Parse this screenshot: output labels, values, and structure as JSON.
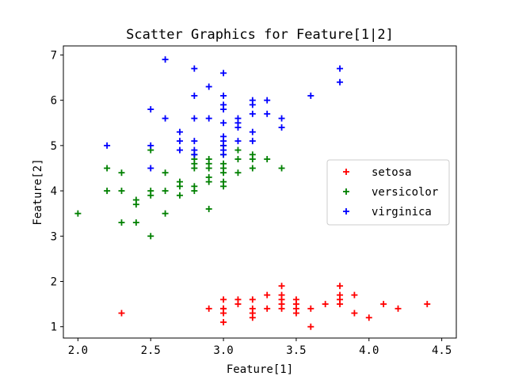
{
  "chart_data": {
    "type": "scatter",
    "title": "Scatter Graphics for Feature[1|2]",
    "xlabel": "Feature[1]",
    "ylabel": "Feature[2]",
    "xlim": [
      1.9,
      4.6
    ],
    "ylim": [
      0.75,
      7.2
    ],
    "xticks": [
      2.0,
      2.5,
      3.0,
      3.5,
      4.0,
      4.5
    ],
    "xtick_labels": [
      "2.0",
      "2.5",
      "3.0",
      "3.5",
      "4.0",
      "4.5"
    ],
    "yticks": [
      1,
      2,
      3,
      4,
      5,
      6,
      7
    ],
    "ytick_labels": [
      "1",
      "2",
      "3",
      "4",
      "5",
      "6",
      "7"
    ],
    "grid": false,
    "legend_position": "center-right",
    "marker": "plus",
    "series": [
      {
        "name": "setosa",
        "color": "#ff0000",
        "points": [
          [
            2.3,
            1.3
          ],
          [
            2.9,
            1.4
          ],
          [
            3.0,
            1.1
          ],
          [
            3.0,
            1.3
          ],
          [
            3.0,
            1.4
          ],
          [
            3.0,
            1.4
          ],
          [
            3.0,
            1.6
          ],
          [
            3.1,
            1.5
          ],
          [
            3.1,
            1.6
          ],
          [
            3.2,
            1.2
          ],
          [
            3.2,
            1.3
          ],
          [
            3.2,
            1.4
          ],
          [
            3.2,
            1.6
          ],
          [
            3.3,
            1.4
          ],
          [
            3.3,
            1.7
          ],
          [
            3.4,
            1.4
          ],
          [
            3.4,
            1.5
          ],
          [
            3.4,
            1.6
          ],
          [
            3.4,
            1.7
          ],
          [
            3.4,
            1.9
          ],
          [
            3.5,
            1.3
          ],
          [
            3.5,
            1.4
          ],
          [
            3.5,
            1.5
          ],
          [
            3.5,
            1.6
          ],
          [
            3.6,
            1.0
          ],
          [
            3.6,
            1.4
          ],
          [
            3.7,
            1.5
          ],
          [
            3.8,
            1.5
          ],
          [
            3.8,
            1.6
          ],
          [
            3.8,
            1.7
          ],
          [
            3.8,
            1.9
          ],
          [
            3.9,
            1.3
          ],
          [
            3.9,
            1.7
          ],
          [
            4.0,
            1.2
          ],
          [
            4.1,
            1.5
          ],
          [
            4.2,
            1.4
          ],
          [
            4.4,
            1.5
          ]
        ]
      },
      {
        "name": "versicolor",
        "color": "#008000",
        "points": [
          [
            2.0,
            3.5
          ],
          [
            2.2,
            4.0
          ],
          [
            2.2,
            4.5
          ],
          [
            2.3,
            3.3
          ],
          [
            2.3,
            4.0
          ],
          [
            2.3,
            4.4
          ],
          [
            2.4,
            3.3
          ],
          [
            2.4,
            3.7
          ],
          [
            2.4,
            3.8
          ],
          [
            2.5,
            3.0
          ],
          [
            2.5,
            3.9
          ],
          [
            2.5,
            4.0
          ],
          [
            2.5,
            4.9
          ],
          [
            2.6,
            3.5
          ],
          [
            2.6,
            4.0
          ],
          [
            2.6,
            4.4
          ],
          [
            2.7,
            3.9
          ],
          [
            2.7,
            4.1
          ],
          [
            2.7,
            4.2
          ],
          [
            2.8,
            4.0
          ],
          [
            2.8,
            4.1
          ],
          [
            2.8,
            4.5
          ],
          [
            2.8,
            4.6
          ],
          [
            2.8,
            4.7
          ],
          [
            2.8,
            4.8
          ],
          [
            2.9,
            3.6
          ],
          [
            2.9,
            4.2
          ],
          [
            2.9,
            4.3
          ],
          [
            2.9,
            4.5
          ],
          [
            2.9,
            4.6
          ],
          [
            2.9,
            4.7
          ],
          [
            3.0,
            4.1
          ],
          [
            3.0,
            4.2
          ],
          [
            3.0,
            4.4
          ],
          [
            3.0,
            4.5
          ],
          [
            3.0,
            4.6
          ],
          [
            3.0,
            4.8
          ],
          [
            3.0,
            5.0
          ],
          [
            3.1,
            4.4
          ],
          [
            3.1,
            4.7
          ],
          [
            3.1,
            4.9
          ],
          [
            3.2,
            4.5
          ],
          [
            3.2,
            4.7
          ],
          [
            3.2,
            4.8
          ],
          [
            3.3,
            4.7
          ],
          [
            3.4,
            4.5
          ]
        ]
      },
      {
        "name": "virginica",
        "color": "#0000ff",
        "points": [
          [
            2.2,
            5.0
          ],
          [
            2.5,
            4.5
          ],
          [
            2.5,
            5.0
          ],
          [
            2.5,
            5.8
          ],
          [
            2.6,
            5.6
          ],
          [
            2.6,
            6.9
          ],
          [
            2.7,
            4.9
          ],
          [
            2.7,
            5.1
          ],
          [
            2.7,
            5.3
          ],
          [
            2.8,
            4.8
          ],
          [
            2.8,
            4.9
          ],
          [
            2.8,
            5.1
          ],
          [
            2.8,
            5.6
          ],
          [
            2.8,
            6.1
          ],
          [
            2.8,
            6.7
          ],
          [
            2.9,
            5.6
          ],
          [
            2.9,
            6.3
          ],
          [
            3.0,
            4.8
          ],
          [
            3.0,
            4.9
          ],
          [
            3.0,
            5.0
          ],
          [
            3.0,
            5.1
          ],
          [
            3.0,
            5.2
          ],
          [
            3.0,
            5.5
          ],
          [
            3.0,
            5.8
          ],
          [
            3.0,
            5.9
          ],
          [
            3.0,
            6.1
          ],
          [
            3.0,
            6.6
          ],
          [
            3.1,
            5.1
          ],
          [
            3.1,
            5.4
          ],
          [
            3.1,
            5.5
          ],
          [
            3.1,
            5.6
          ],
          [
            3.2,
            5.1
          ],
          [
            3.2,
            5.3
          ],
          [
            3.2,
            5.7
          ],
          [
            3.2,
            5.9
          ],
          [
            3.2,
            6.0
          ],
          [
            3.3,
            5.7
          ],
          [
            3.3,
            6.0
          ],
          [
            3.4,
            5.4
          ],
          [
            3.4,
            5.6
          ],
          [
            3.6,
            6.1
          ],
          [
            3.8,
            6.4
          ],
          [
            3.8,
            6.7
          ]
        ]
      }
    ]
  }
}
